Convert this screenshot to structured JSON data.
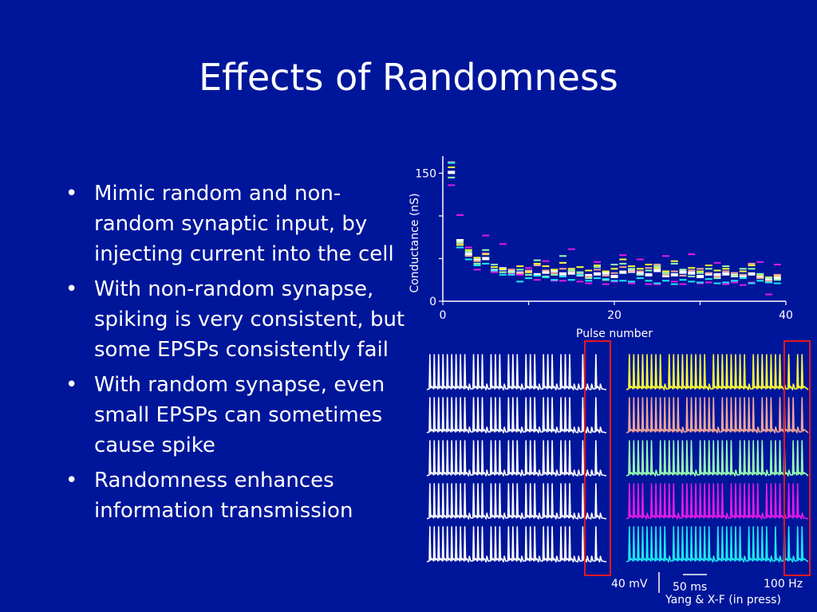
{
  "slide": {
    "title": "Effects of Randomness",
    "bullets": [
      "Mimic random and non-random synaptic input, by injecting current into the cell",
      "With non-random synapse, spiking is very consistent, but some EPSPs consistently fail",
      "With random synapse, even small EPSPs can sometimes cause spike",
      "Randomness enhances information transmission"
    ],
    "scalebar_mv": "40 mV",
    "scalebar_ms": "50 ms",
    "rate_label": "100 Hz",
    "citation": "Yang & X-F (in press)"
  },
  "colors": {
    "background": "#00169a",
    "highlight_box": "#e0191e",
    "trace_colors": [
      "#ffffff",
      "#ffff33",
      "#f4a79a",
      "#99ffb0",
      "#e41ae9",
      "#1ee8f5"
    ]
  },
  "chart_data": {
    "type": "scatter",
    "xlabel": "Pulse number",
    "ylabel": "Conductance (nS)",
    "xlim": [
      0,
      40
    ],
    "ylim": [
      0,
      170
    ],
    "xticks": [
      0,
      20,
      40
    ],
    "yticks": [
      0,
      150
    ],
    "series": [
      {
        "color": "#ffffff",
        "x": [
          1,
          2,
          3,
          4,
          5,
          6,
          7,
          8,
          9,
          10,
          11,
          12,
          13,
          14,
          15,
          16,
          17,
          18,
          19,
          20,
          21,
          22,
          23,
          24,
          25,
          26,
          27,
          28,
          29,
          30,
          31,
          32,
          33,
          34,
          35,
          36,
          37,
          38,
          39
        ],
        "values": [
          151,
          71,
          55,
          48,
          50,
          36,
          38,
          34,
          33,
          35,
          31,
          34,
          36,
          32,
          33,
          31,
          30,
          32,
          33,
          29,
          34,
          35,
          33,
          31,
          36,
          30,
          31,
          34,
          33,
          29,
          32,
          31,
          32,
          30,
          30,
          32,
          28,
          25,
          27
        ]
      },
      {
        "color": "#ffff33",
        "x": [
          1,
          2,
          3,
          4,
          5,
          6,
          7,
          8,
          9,
          10,
          11,
          12,
          13,
          14,
          15,
          16,
          17,
          18,
          19,
          20,
          21,
          22,
          23,
          24,
          25,
          26,
          27,
          28,
          29,
          30,
          31,
          32,
          33,
          34,
          35,
          36,
          37,
          38,
          39
        ],
        "values": [
          157,
          66,
          60,
          51,
          55,
          40,
          38,
          37,
          41,
          34,
          44,
          41,
          37,
          45,
          38,
          40,
          36,
          42,
          35,
          38,
          49,
          41,
          38,
          43,
          39,
          35,
          47,
          37,
          39,
          35,
          42,
          36,
          38,
          33,
          35,
          42,
          31,
          28,
          30
        ]
      },
      {
        "color": "#f4a79a",
        "x": [
          1,
          2,
          3,
          4,
          5,
          6,
          7,
          8,
          9,
          10,
          11,
          12,
          13,
          14,
          15,
          16,
          17,
          18,
          19,
          20,
          21,
          22,
          23,
          24,
          25,
          26,
          27,
          28,
          29,
          30,
          31,
          32,
          33,
          34,
          35,
          36,
          37,
          38,
          39
        ],
        "values": [
          163,
          68,
          53,
          47,
          56,
          36,
          34,
          37,
          33,
          36,
          42,
          36,
          33,
          38,
          35,
          32,
          29,
          37,
          30,
          33,
          40,
          35,
          35,
          39,
          43,
          31,
          35,
          30,
          36,
          38,
          33,
          29,
          35,
          33,
          31,
          44,
          27,
          24,
          31
        ]
      },
      {
        "color": "#99ffb0",
        "x": [
          1,
          2,
          3,
          4,
          5,
          6,
          7,
          8,
          9,
          10,
          11,
          12,
          13,
          14,
          15,
          16,
          17,
          18,
          19,
          20,
          21,
          22,
          23,
          24,
          25,
          26,
          27,
          28,
          29,
          30,
          31,
          32,
          33,
          34,
          35,
          36,
          37,
          38,
          39
        ],
        "values": [
          145,
          69,
          58,
          44,
          60,
          43,
          34,
          34,
          37,
          31,
          48,
          29,
          31,
          53,
          36,
          34,
          27,
          40,
          25,
          43,
          44,
          38,
          31,
          36,
          41,
          33,
          44,
          37,
          29,
          33,
          38,
          27,
          41,
          30,
          38,
          38,
          32,
          27,
          25
        ]
      },
      {
        "color": "#e41ae9",
        "x": [
          1,
          2,
          3,
          4,
          5,
          6,
          7,
          8,
          9,
          10,
          11,
          12,
          13,
          14,
          15,
          16,
          17,
          18,
          19,
          20,
          21,
          22,
          23,
          24,
          25,
          26,
          27,
          28,
          29,
          30,
          31,
          32,
          33,
          34,
          35,
          36,
          37,
          38,
          39
        ],
        "values": [
          136,
          101,
          63,
          37,
          77,
          34,
          67,
          32,
          31,
          39,
          25,
          47,
          24,
          24,
          61,
          23,
          21,
          46,
          20,
          23,
          54,
          21,
          49,
          20,
          20,
          53,
          23,
          20,
          55,
          21,
          22,
          45,
          20,
          22,
          19,
          22,
          46,
          8,
          43
        ]
      },
      {
        "color": "#1ee8f5",
        "x": [
          1,
          2,
          3,
          4,
          5,
          6,
          7,
          8,
          9,
          10,
          11,
          12,
          13,
          14,
          15,
          16,
          17,
          18,
          19,
          20,
          21,
          22,
          23,
          24,
          25,
          26,
          27,
          28,
          29,
          30,
          31,
          32,
          33,
          34,
          35,
          36,
          37,
          38,
          39
        ],
        "values": [
          162,
          63,
          49,
          42,
          44,
          36,
          31,
          31,
          23,
          27,
          30,
          28,
          25,
          29,
          25,
          31,
          24,
          27,
          26,
          24,
          24,
          23,
          27,
          24,
          21,
          24,
          20,
          25,
          23,
          22,
          26,
          21,
          22,
          24,
          27,
          21,
          24,
          22,
          21
        ]
      }
    ]
  },
  "traces": {
    "rows": 5,
    "spikes_per_row": 40,
    "left_panel_colors": [
      "#ffffff",
      "#ffffff",
      "#ffffff",
      "#ffffff",
      "#ffffff"
    ],
    "right_panel_colors": [
      "#ffff33",
      "#f4a79a",
      "#99ffb0",
      "#e41ae9",
      "#1ee8f5"
    ],
    "left_failures": [
      [
        9,
        13,
        17,
        21,
        25,
        29,
        33,
        34,
        36,
        37,
        39
      ],
      [
        9,
        13,
        17,
        21,
        25,
        29,
        33,
        34,
        36,
        37,
        39
      ],
      [
        9,
        13,
        17,
        21,
        25,
        29,
        33,
        34,
        36,
        37,
        39
      ],
      [
        9,
        13,
        17,
        21,
        25,
        29,
        33,
        34,
        36,
        37,
        39
      ],
      [
        9,
        13,
        17,
        21,
        25,
        29,
        33,
        34,
        36,
        37,
        39
      ]
    ],
    "right_failures": [
      [
        8,
        18,
        27,
        35,
        37
      ],
      [
        12,
        20,
        29,
        33,
        38
      ],
      [
        6,
        15,
        24,
        31,
        36
      ],
      [
        4,
        11,
        22,
        30,
        35,
        39
      ],
      [
        9,
        19,
        26,
        32,
        34,
        37
      ]
    ]
  }
}
